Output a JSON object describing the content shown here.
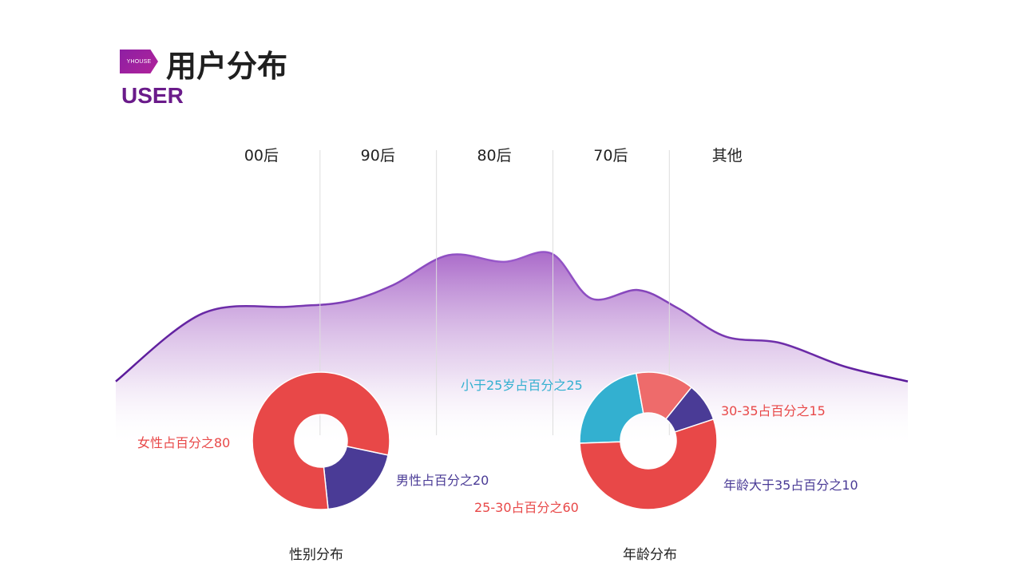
{
  "header": {
    "logo_text": "YHOUSE",
    "title": "用户分布",
    "subtitle": "USER"
  },
  "colors": {
    "accent": "#7b2fb0",
    "curve": "#8e44c8",
    "red": "#e84848",
    "red_light": "#ee6b6b",
    "navy": "#4a3b96",
    "cyan": "#33b0d0"
  },
  "chart_data": [
    {
      "type": "area",
      "categories": [
        "00后",
        "90后",
        "80后",
        "70后",
        "其他"
      ],
      "title": "",
      "xlabel": "",
      "ylabel": "",
      "grid": false,
      "note_on_values": "unlabeled curve; relative heights estimated on a 0-100 scale",
      "x": [
        0,
        0.55,
        1.1,
        1.45,
        1.75,
        2.1,
        2.45,
        2.75,
        3.0,
        3.3,
        3.55,
        3.85,
        4.2,
        4.6,
        5.0
      ],
      "values": [
        5,
        46,
        50,
        53,
        63,
        81,
        77,
        82,
        55,
        60,
        49,
        32,
        28,
        14,
        5
      ]
    },
    {
      "type": "pie",
      "title": "性别分布",
      "donut": true,
      "slices": [
        {
          "label": "女性占百分之80",
          "value": 80,
          "color": "#e84848"
        },
        {
          "label": "男性占百分之20",
          "value": 20,
          "color": "#4a3b96"
        }
      ]
    },
    {
      "type": "pie",
      "title": "年龄分布",
      "donut": true,
      "slices": [
        {
          "label": "小于25岁占百分之25",
          "value": 25,
          "color": "#33b0d0"
        },
        {
          "label": "30-35占百分之15",
          "value": 15,
          "color": "#ee6b6b"
        },
        {
          "label": "年龄大于35占百分之10",
          "value": 10,
          "color": "#4a3b96"
        },
        {
          "label": "25-30占百分之60",
          "value": 60,
          "color": "#e84848"
        }
      ]
    }
  ]
}
